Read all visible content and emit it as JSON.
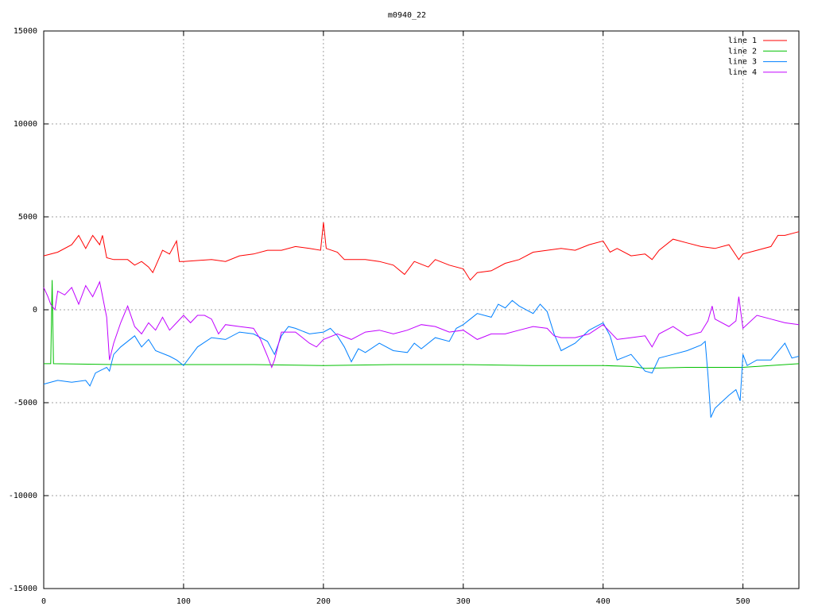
{
  "chart_data": {
    "type": "line",
    "title": "m0940_22",
    "xlim": [
      0,
      540
    ],
    "xticks": [
      0,
      100,
      200,
      300,
      400,
      500
    ],
    "ylim": [
      -15000,
      15000
    ],
    "yticks": [
      -15000,
      -10000,
      -5000,
      0,
      5000,
      10000,
      15000
    ],
    "grid": true,
    "legend": "top-right",
    "series": [
      {
        "name": "line 1",
        "color": "#ff0000",
        "x": [
          0,
          10,
          20,
          25,
          30,
          35,
          40,
          42,
          45,
          50,
          60,
          65,
          70,
          75,
          78,
          85,
          90,
          95,
          97,
          100,
          120,
          130,
          140,
          150,
          160,
          170,
          180,
          190,
          198,
          200,
          202,
          210,
          215,
          230,
          240,
          250,
          258,
          265,
          275,
          280,
          290,
          300,
          305,
          310,
          320,
          330,
          340,
          350,
          360,
          370,
          380,
          390,
          400,
          405,
          410,
          420,
          430,
          435,
          440,
          450,
          460,
          470,
          480,
          490,
          497,
          500,
          510,
          520,
          525,
          530,
          540
        ],
        "values": [
          2900,
          3100,
          3500,
          4000,
          3300,
          4000,
          3500,
          4000,
          2800,
          2700,
          2700,
          2400,
          2600,
          2300,
          2000,
          3200,
          3000,
          3700,
          2600,
          2600,
          2700,
          2600,
          2900,
          3000,
          3200,
          3200,
          3400,
          3300,
          3200,
          4700,
          3300,
          3100,
          2700,
          2700,
          2600,
          2400,
          1900,
          2600,
          2300,
          2700,
          2400,
          2200,
          1600,
          2000,
          2100,
          2500,
          2700,
          3100,
          3200,
          3300,
          3200,
          3500,
          3700,
          3100,
          3300,
          2900,
          3000,
          2700,
          3200,
          3800,
          3600,
          3400,
          3300,
          3500,
          2700,
          3000,
          3200,
          3400,
          4000,
          4000,
          4200
        ]
      },
      {
        "name": "line 2",
        "color": "#00c000",
        "x": [
          0,
          5,
          6,
          7,
          50,
          100,
          150,
          200,
          250,
          300,
          350,
          400,
          420,
          430,
          460,
          500,
          540
        ],
        "values": [
          -2900,
          -2900,
          1600,
          -2900,
          -2950,
          -2950,
          -2950,
          -3000,
          -2950,
          -2950,
          -3000,
          -3000,
          -3050,
          -3150,
          -3100,
          -3100,
          -2900
        ]
      },
      {
        "name": "line 3",
        "color": "#0080ff",
        "x": [
          0,
          10,
          20,
          30,
          33,
          37,
          45,
          47,
          50,
          55,
          60,
          65,
          70,
          75,
          80,
          90,
          95,
          100,
          105,
          110,
          120,
          130,
          140,
          150,
          160,
          165,
          170,
          175,
          180,
          190,
          200,
          205,
          210,
          215,
          220,
          225,
          230,
          240,
          250,
          260,
          265,
          270,
          280,
          290,
          295,
          300,
          305,
          310,
          320,
          325,
          330,
          335,
          340,
          350,
          355,
          360,
          365,
          370,
          380,
          390,
          400,
          405,
          410,
          420,
          430,
          435,
          440,
          450,
          460,
          470,
          473,
          475,
          477,
          480,
          490,
          495,
          498,
          500,
          503,
          510,
          520,
          530,
          535,
          540
        ],
        "values": [
          -4000,
          -3800,
          -3900,
          -3800,
          -4100,
          -3400,
          -3100,
          -3300,
          -2400,
          -2000,
          -1700,
          -1400,
          -2000,
          -1600,
          -2200,
          -2500,
          -2700,
          -3000,
          -2500,
          -2000,
          -1500,
          -1600,
          -1200,
          -1300,
          -1700,
          -2400,
          -1400,
          -900,
          -1000,
          -1300,
          -1200,
          -1000,
          -1400,
          -2000,
          -2800,
          -2100,
          -2300,
          -1800,
          -2200,
          -2300,
          -1800,
          -2100,
          -1500,
          -1700,
          -1000,
          -800,
          -500,
          -200,
          -400,
          300,
          100,
          500,
          200,
          -200,
          300,
          -100,
          -1300,
          -2200,
          -1800,
          -1100,
          -700,
          -1400,
          -2700,
          -2400,
          -3300,
          -3400,
          -2600,
          -2400,
          -2200,
          -1900,
          -1700,
          -3500,
          -5800,
          -5300,
          -4600,
          -4300,
          -4900,
          -2400,
          -3000,
          -2700,
          -2700,
          -1800,
          -2600,
          -2500
        ]
      },
      {
        "name": "line 4",
        "color": "#c000ff",
        "x": [
          0,
          3,
          5,
          8,
          10,
          15,
          20,
          25,
          30,
          35,
          40,
          45,
          47,
          50,
          55,
          60,
          65,
          70,
          75,
          80,
          85,
          90,
          95,
          100,
          105,
          110,
          115,
          120,
          125,
          130,
          140,
          150,
          155,
          160,
          163,
          165,
          170,
          180,
          190,
          195,
          200,
          210,
          220,
          230,
          240,
          250,
          260,
          270,
          280,
          290,
          300,
          310,
          320,
          330,
          340,
          350,
          360,
          365,
          370,
          380,
          390,
          400,
          410,
          420,
          430,
          435,
          440,
          450,
          460,
          470,
          475,
          478,
          480,
          490,
          495,
          497,
          500,
          510,
          520,
          530,
          540
        ],
        "values": [
          1200,
          700,
          300,
          0,
          1000,
          800,
          1200,
          300,
          1300,
          700,
          1500,
          -400,
          -2700,
          -1800,
          -700,
          200,
          -900,
          -1300,
          -700,
          -1100,
          -400,
          -1100,
          -700,
          -300,
          -700,
          -300,
          -300,
          -500,
          -1300,
          -800,
          -900,
          -1000,
          -1600,
          -2500,
          -3100,
          -2700,
          -1200,
          -1200,
          -1800,
          -2000,
          -1600,
          -1300,
          -1600,
          -1200,
          -1100,
          -1300,
          -1100,
          -800,
          -900,
          -1200,
          -1100,
          -1600,
          -1300,
          -1300,
          -1100,
          -900,
          -1000,
          -1400,
          -1500,
          -1500,
          -1300,
          -800,
          -1600,
          -1500,
          -1400,
          -2000,
          -1300,
          -900,
          -1400,
          -1200,
          -600,
          200,
          -500,
          -900,
          -600,
          700,
          -1000,
          -300,
          -500,
          -700,
          -800
        ]
      }
    ]
  }
}
